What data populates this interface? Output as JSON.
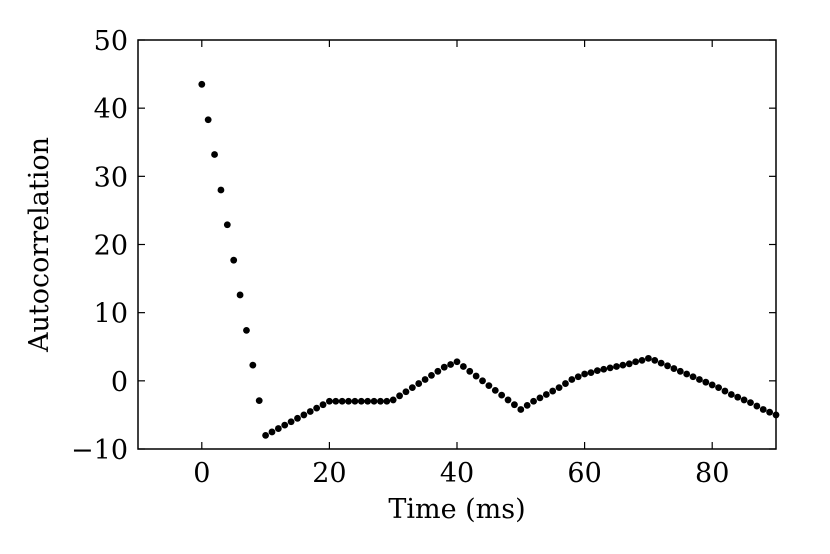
{
  "chart_data": {
    "type": "scatter",
    "title": "",
    "xlabel": "Time (ms)",
    "ylabel": "Autocorrelation",
    "xlim": [
      -10,
      90
    ],
    "ylim": [
      -10,
      50
    ],
    "x_ticks": [
      0,
      20,
      40,
      60,
      80
    ],
    "x_tick_labels": [
      "0",
      "20",
      "40",
      "60",
      "80"
    ],
    "y_ticks": [
      -10,
      0,
      10,
      20,
      30,
      40,
      50
    ],
    "y_tick_labels": [
      "−10",
      "0",
      "10",
      "20",
      "30",
      "40",
      "50"
    ],
    "grid": false,
    "legend": "none",
    "marker_color": "#000000",
    "series": [
      {
        "x": [
          0,
          1,
          2,
          3,
          4,
          5,
          6,
          7,
          8,
          9,
          10,
          11,
          12,
          13,
          14,
          15,
          16,
          17,
          18,
          19,
          20,
          21,
          22,
          23,
          24,
          25,
          26,
          27,
          28,
          29,
          30,
          31,
          32,
          33,
          34,
          35,
          36,
          37,
          38,
          39,
          40,
          41,
          42,
          43,
          44,
          45,
          46,
          47,
          48,
          49,
          50,
          51,
          52,
          53,
          54,
          55,
          56,
          57,
          58,
          59,
          60,
          61,
          62,
          63,
          64,
          65,
          66,
          67,
          68,
          69,
          70,
          71,
          72,
          73,
          74,
          75,
          76,
          77,
          78,
          79,
          80,
          81,
          82,
          83,
          84,
          85,
          86,
          87,
          88,
          89,
          90
        ],
        "y": [
          43.5,
          38.3,
          33.2,
          28.0,
          22.9,
          17.7,
          12.6,
          7.4,
          2.3,
          -2.9,
          -8.0,
          -7.5,
          -7.0,
          -6.5,
          -6.0,
          -5.5,
          -5.0,
          -4.5,
          -4.0,
          -3.5,
          -3.0,
          -3.0,
          -3.0,
          -3.0,
          -3.0,
          -3.0,
          -3.0,
          -3.0,
          -3.0,
          -3.0,
          -2.8,
          -2.2,
          -1.6,
          -1.0,
          -0.4,
          0.2,
          0.8,
          1.4,
          2.0,
          2.4,
          2.8,
          2.1,
          1.4,
          0.7,
          0.0,
          -0.7,
          -1.4,
          -2.1,
          -2.8,
          -3.5,
          -4.2,
          -3.6,
          -3.0,
          -2.5,
          -2.0,
          -1.5,
          -1.0,
          -0.4,
          0.2,
          0.6,
          1.0,
          1.2,
          1.5,
          1.7,
          1.9,
          2.1,
          2.3,
          2.5,
          2.8,
          3.0,
          3.3,
          3.0,
          2.6,
          2.2,
          1.8,
          1.4,
          1.0,
          0.6,
          0.2,
          -0.2,
          -0.6,
          -1.0,
          -1.5,
          -2.0,
          -2.4,
          -2.8,
          -3.2,
          -3.7,
          -4.2,
          -4.6,
          -5.0
        ]
      }
    ]
  }
}
